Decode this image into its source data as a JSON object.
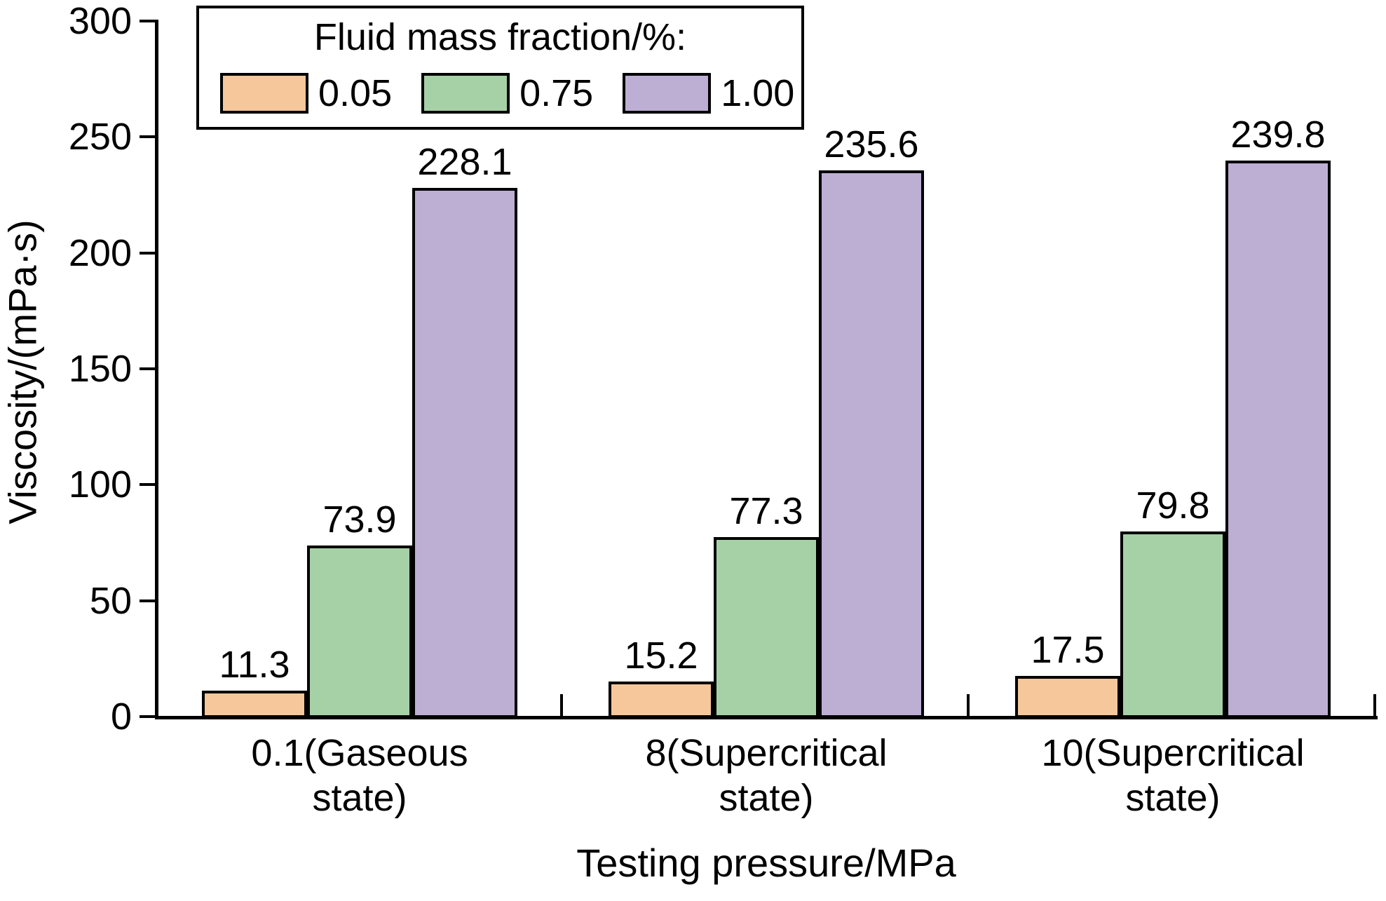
{
  "chart_data": {
    "type": "bar",
    "title": "",
    "xlabel": "Testing pressure/MPa",
    "ylabel": "Viscosity/(mPa·s)",
    "categories": [
      "0.1(Gaseous\nstate)",
      "8(Supercritical\nstate)",
      "10(Supercritical\nstate)"
    ],
    "series": [
      {
        "name": "0.05",
        "color": "#F5C79B",
        "values": [
          11.3,
          15.2,
          17.5
        ]
      },
      {
        "name": "0.75",
        "color": "#A6D1A6",
        "values": [
          73.9,
          77.3,
          79.8
        ]
      },
      {
        "name": "1.00",
        "color": "#BDAED4",
        "values": [
          228.1,
          235.6,
          239.8
        ]
      }
    ],
    "ylim": [
      0,
      300
    ],
    "yticks": [
      0,
      50,
      100,
      150,
      200,
      250,
      300
    ],
    "legend_title": "Fluid mass fraction/%:",
    "legend_position": "top-left-inside",
    "grid": false,
    "bar_border_color": "#000000",
    "axis_color": "#000000",
    "value_label_decimals": 1
  }
}
